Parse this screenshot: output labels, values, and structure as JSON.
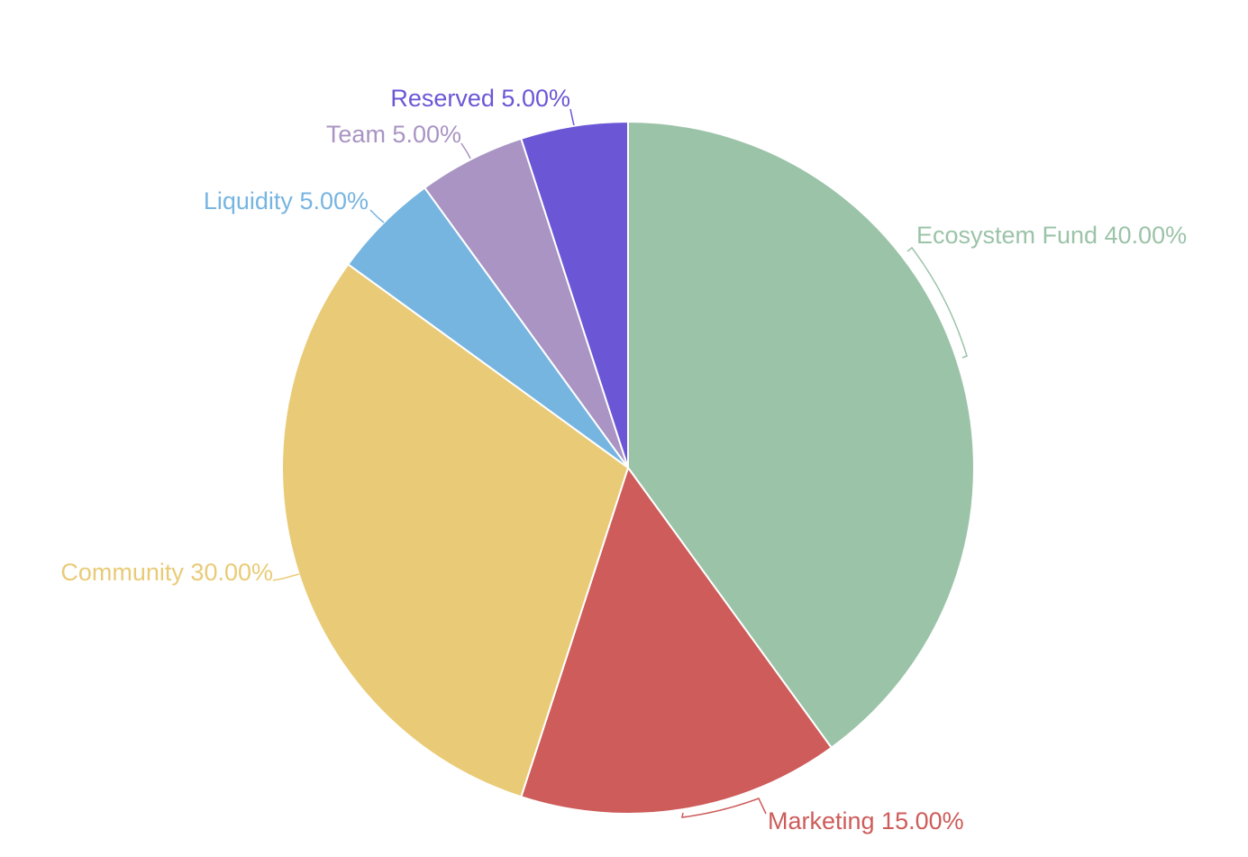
{
  "chart_data": {
    "type": "pie",
    "title": "",
    "slices": [
      {
        "label": "Ecosystem Fund 40.00%",
        "value": 40.0,
        "color": "#9bc3a8"
      },
      {
        "label": "Marketing 15.00%",
        "value": 15.0,
        "color": "#cd5c5a"
      },
      {
        "label": "Community 30.00%",
        "value": 30.0,
        "color": "#e9cb77"
      },
      {
        "label": "Liquidity 5.00%",
        "value": 5.0,
        "color": "#77b5e1"
      },
      {
        "label": "Team 5.00%",
        "value": 5.0,
        "color": "#a994c3"
      },
      {
        "label": "Reserved 5.00%",
        "value": 5.0,
        "color": "#6b57d6"
      }
    ]
  }
}
